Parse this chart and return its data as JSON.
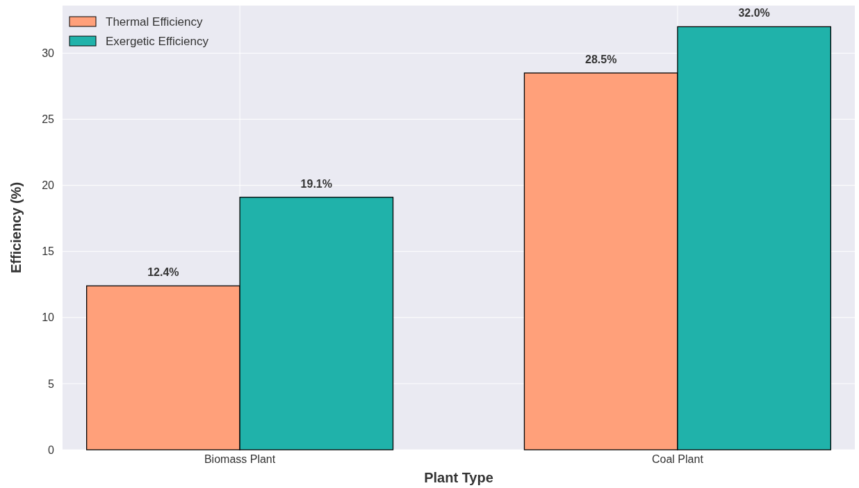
{
  "chart_data": {
    "type": "bar",
    "xlabel": "Plant Type",
    "ylabel": "Efficiency (%)",
    "categories": [
      "Biomass Plant",
      "Coal Plant"
    ],
    "series": [
      {
        "name": "Thermal Efficiency",
        "color": "#ffa07a",
        "values": [
          12.4,
          28.5
        ],
        "value_labels": [
          "12.4%",
          "28.5%"
        ]
      },
      {
        "name": "Exergetic Efficiency",
        "color": "#20b2aa",
        "values": [
          19.1,
          32.0
        ],
        "value_labels": [
          "19.1%",
          "32.0%"
        ]
      }
    ],
    "ylim": [
      0,
      33.6
    ],
    "yticks": [
      0,
      5,
      10,
      15,
      20,
      25,
      30
    ],
    "grid": true,
    "legend": "top left"
  }
}
